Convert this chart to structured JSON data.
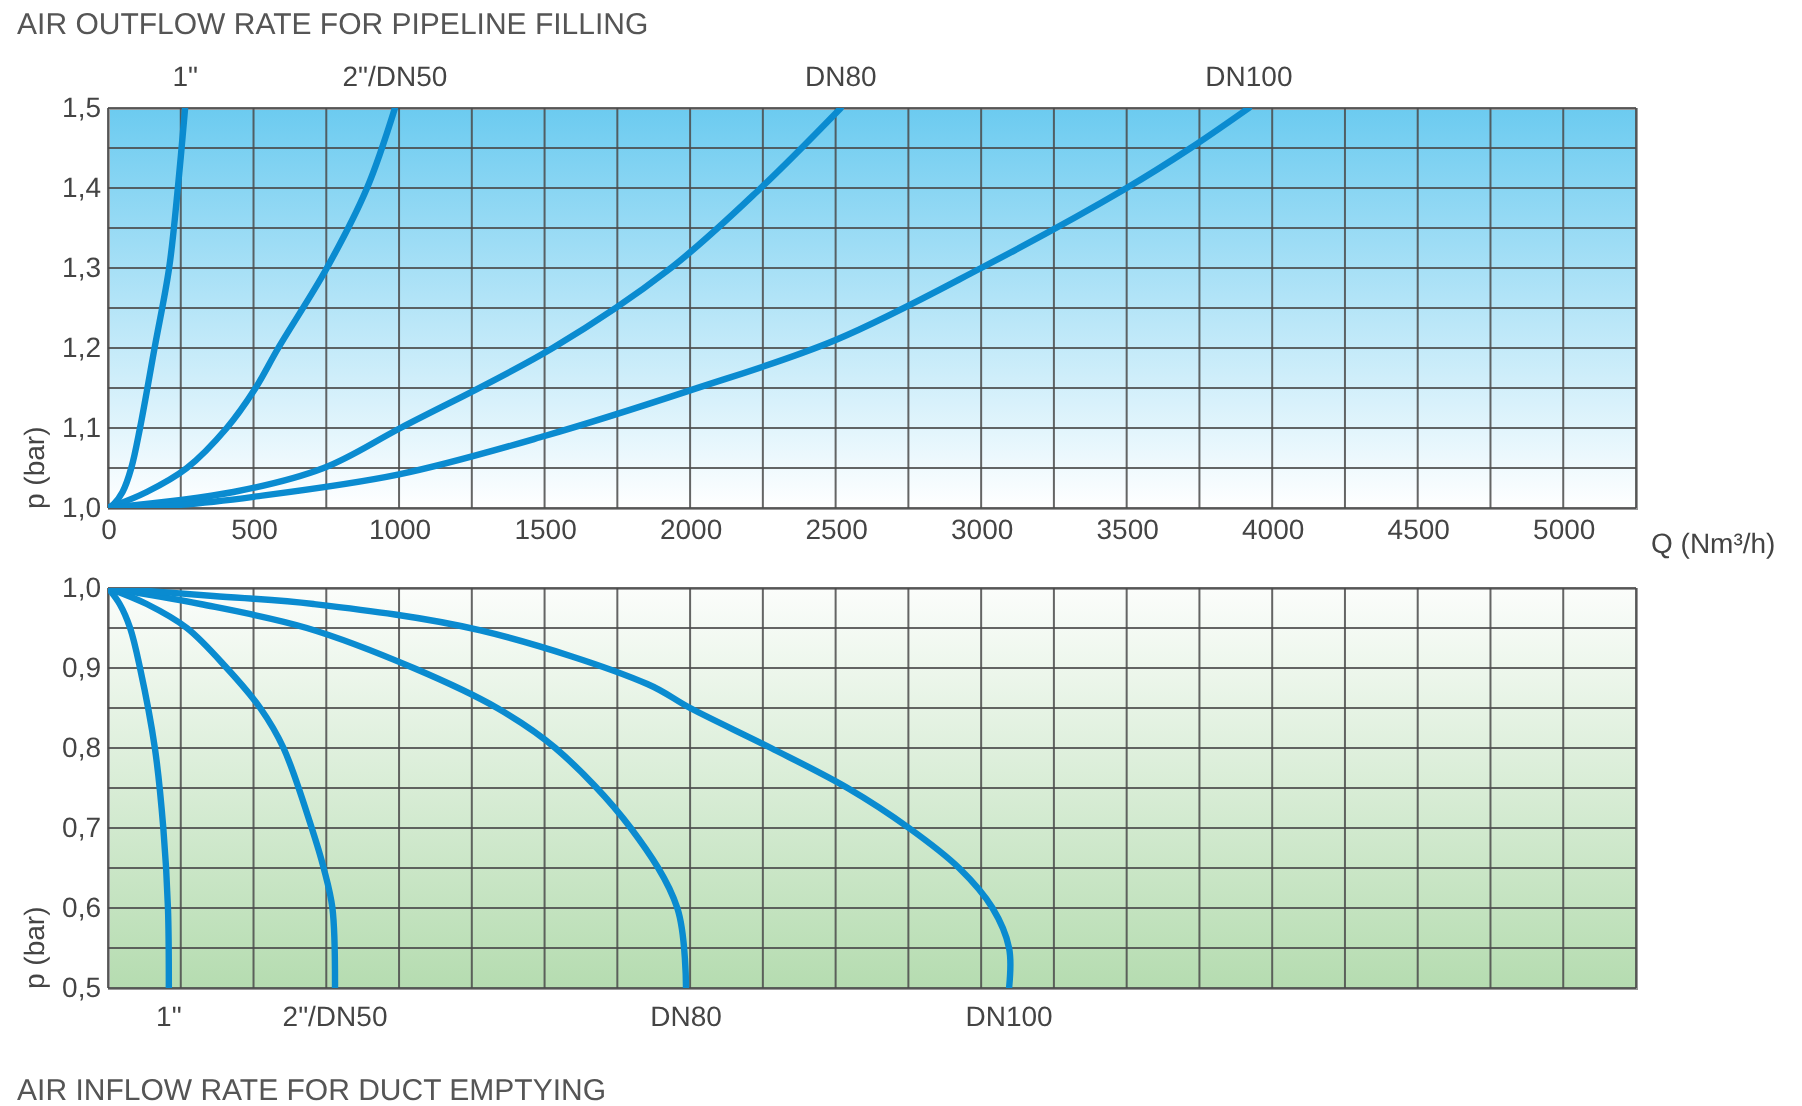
{
  "chart_data": [
    {
      "type": "line",
      "title": "AIR OUTFLOW RATE FOR PIPELINE FILLING",
      "xlabel": "Q (Nm³/h)",
      "ylabel": "p (bar)",
      "xlim": [
        0,
        5250
      ],
      "ylim": [
        1.0,
        1.5
      ],
      "xticks": [
        0,
        {
          "value": 250,
          "label": null
        },
        500,
        {
          "value": 750,
          "label": null
        },
        1000,
        {
          "value": 1250,
          "label": null
        },
        1500,
        {
          "value": 1750,
          "label": null
        },
        2000,
        {
          "value": 2250,
          "label": null
        },
        2500,
        {
          "value": 2750,
          "label": null
        },
        3000,
        {
          "value": 3250,
          "label": null
        },
        3500,
        {
          "value": 3750,
          "label": null
        },
        4000,
        {
          "value": 4250,
          "label": null
        },
        4500,
        {
          "value": 4750,
          "label": null
        },
        5000,
        {
          "value": 5250,
          "label": null
        }
      ],
      "yticks": [
        {
          "value": 1.0,
          "label": "1,0"
        },
        {
          "value": 1.05,
          "label": null
        },
        {
          "value": 1.1,
          "label": "1,1"
        },
        {
          "value": 1.15,
          "label": null
        },
        {
          "value": 1.2,
          "label": "1,2"
        },
        {
          "value": 1.25,
          "label": null
        },
        {
          "value": 1.3,
          "label": "1,3"
        },
        {
          "value": 1.35,
          "label": null
        },
        {
          "value": 1.4,
          "label": "1,4"
        },
        {
          "value": 1.45,
          "label": null
        },
        {
          "value": 1.5,
          "label": "1,5"
        }
      ],
      "grid": true,
      "legend": false,
      "marker": "none",
      "line_style": "solid",
      "series": [
        {
          "name": "1\"",
          "color": "#0a8bd0",
          "x": [
            0,
            20,
            50,
            80,
            110,
            160,
            210,
            240,
            265
          ],
          "values": [
            1.0,
            1.005,
            1.02,
            1.05,
            1.1,
            1.2,
            1.3,
            1.4,
            1.5
          ]
        },
        {
          "name": "2\"/DN50",
          "color": "#0a8bd0",
          "x": [
            0,
            133,
            271,
            408,
            507,
            585,
            752,
            890,
            986
          ],
          "values": [
            1.0,
            1.02,
            1.05,
            1.1,
            1.15,
            1.2,
            1.3,
            1.4,
            1.5
          ]
        },
        {
          "name": "DN80",
          "color": "#0a8bd0",
          "x": [
            0,
            431,
            741,
            1005,
            1528,
            1934,
            2243,
            2518
          ],
          "values": [
            1.0,
            1.02,
            1.05,
            1.1,
            1.2,
            1.3,
            1.4,
            1.5
          ]
        },
        {
          "name": "DN100",
          "color": "#0a8bd0",
          "x": [
            0,
            250,
            500,
            1000,
            1500,
            2000,
            2500,
            3000,
            3500,
            3720,
            3920
          ],
          "values": [
            1.0,
            1.004,
            1.014,
            1.042,
            1.09,
            1.147,
            1.21,
            1.3,
            1.4,
            1.45,
            1.5
          ]
        }
      ]
    },
    {
      "type": "line",
      "title": "AIR INFLOW RATE FOR DUCT EMPTYING",
      "ylabel": "p (bar)",
      "xlim": [
        0,
        5250
      ],
      "ylim": [
        0.5,
        1.0
      ],
      "tick_labels": "y",
      "xticks": [
        0,
        {
          "value": 250,
          "label": null
        },
        500,
        {
          "value": 750,
          "label": null
        },
        1000,
        {
          "value": 1250,
          "label": null
        },
        1500,
        {
          "value": 1750,
          "label": null
        },
        2000,
        {
          "value": 2250,
          "label": null
        },
        2500,
        {
          "value": 2750,
          "label": null
        },
        3000,
        {
          "value": 3250,
          "label": null
        },
        3500,
        {
          "value": 3750,
          "label": null
        },
        4000,
        {
          "value": 4250,
          "label": null
        },
        4500,
        {
          "value": 4750,
          "label": null
        },
        5000,
        {
          "value": 5250,
          "label": null
        }
      ],
      "yticks": [
        {
          "value": 0.5,
          "label": "0,5"
        },
        {
          "value": 0.55,
          "label": null
        },
        {
          "value": 0.6,
          "label": "0,6"
        },
        {
          "value": 0.65,
          "label": null
        },
        {
          "value": 0.7,
          "label": "0,7"
        },
        {
          "value": 0.75,
          "label": null
        },
        {
          "value": 0.8,
          "label": "0,8"
        },
        {
          "value": 0.85,
          "label": null
        },
        {
          "value": 0.9,
          "label": "0,9"
        },
        {
          "value": 0.95,
          "label": null
        },
        {
          "value": 1.0,
          "label": "1,0"
        }
      ],
      "grid": true,
      "legend": false,
      "marker": "none",
      "line_style": "solid",
      "series": [
        {
          "name": "1\"",
          "color": "#0a8bd0",
          "x": [
            0,
            40,
            76,
            110,
            161,
            190,
            206,
            209
          ],
          "values": [
            1.0,
            0.98,
            0.95,
            0.9,
            0.8,
            0.7,
            0.6,
            0.5
          ]
        },
        {
          "name": "2\"/DN50",
          "color": "#0a8bd0",
          "x": [
            0,
            133,
            271,
            408,
            523,
            603,
            700,
            741,
            771,
            780
          ],
          "values": [
            1.0,
            0.98,
            0.95,
            0.9,
            0.85,
            0.8,
            0.7,
            0.65,
            0.6,
            0.5
          ]
        },
        {
          "name": "DN80",
          "color": "#0a8bd0",
          "x": [
            0,
            317,
            683,
            1050,
            1337,
            1537,
            1796,
            1956,
            1986
          ],
          "values": [
            1.0,
            0.98,
            0.95,
            0.9,
            0.85,
            0.8,
            0.7,
            0.6,
            0.5
          ]
        },
        {
          "name": "DN100",
          "color": "#0a8bd0",
          "x": [
            0,
            362,
            706,
            1280,
            1853,
            2000,
            2278,
            2541,
            2752,
            2924,
            3039,
            3096,
            3096
          ],
          "values": [
            1.0,
            0.99,
            0.98,
            0.947,
            0.88,
            0.85,
            0.8,
            0.75,
            0.7,
            0.65,
            0.6,
            0.55,
            0.5
          ]
        }
      ]
    }
  ]
}
